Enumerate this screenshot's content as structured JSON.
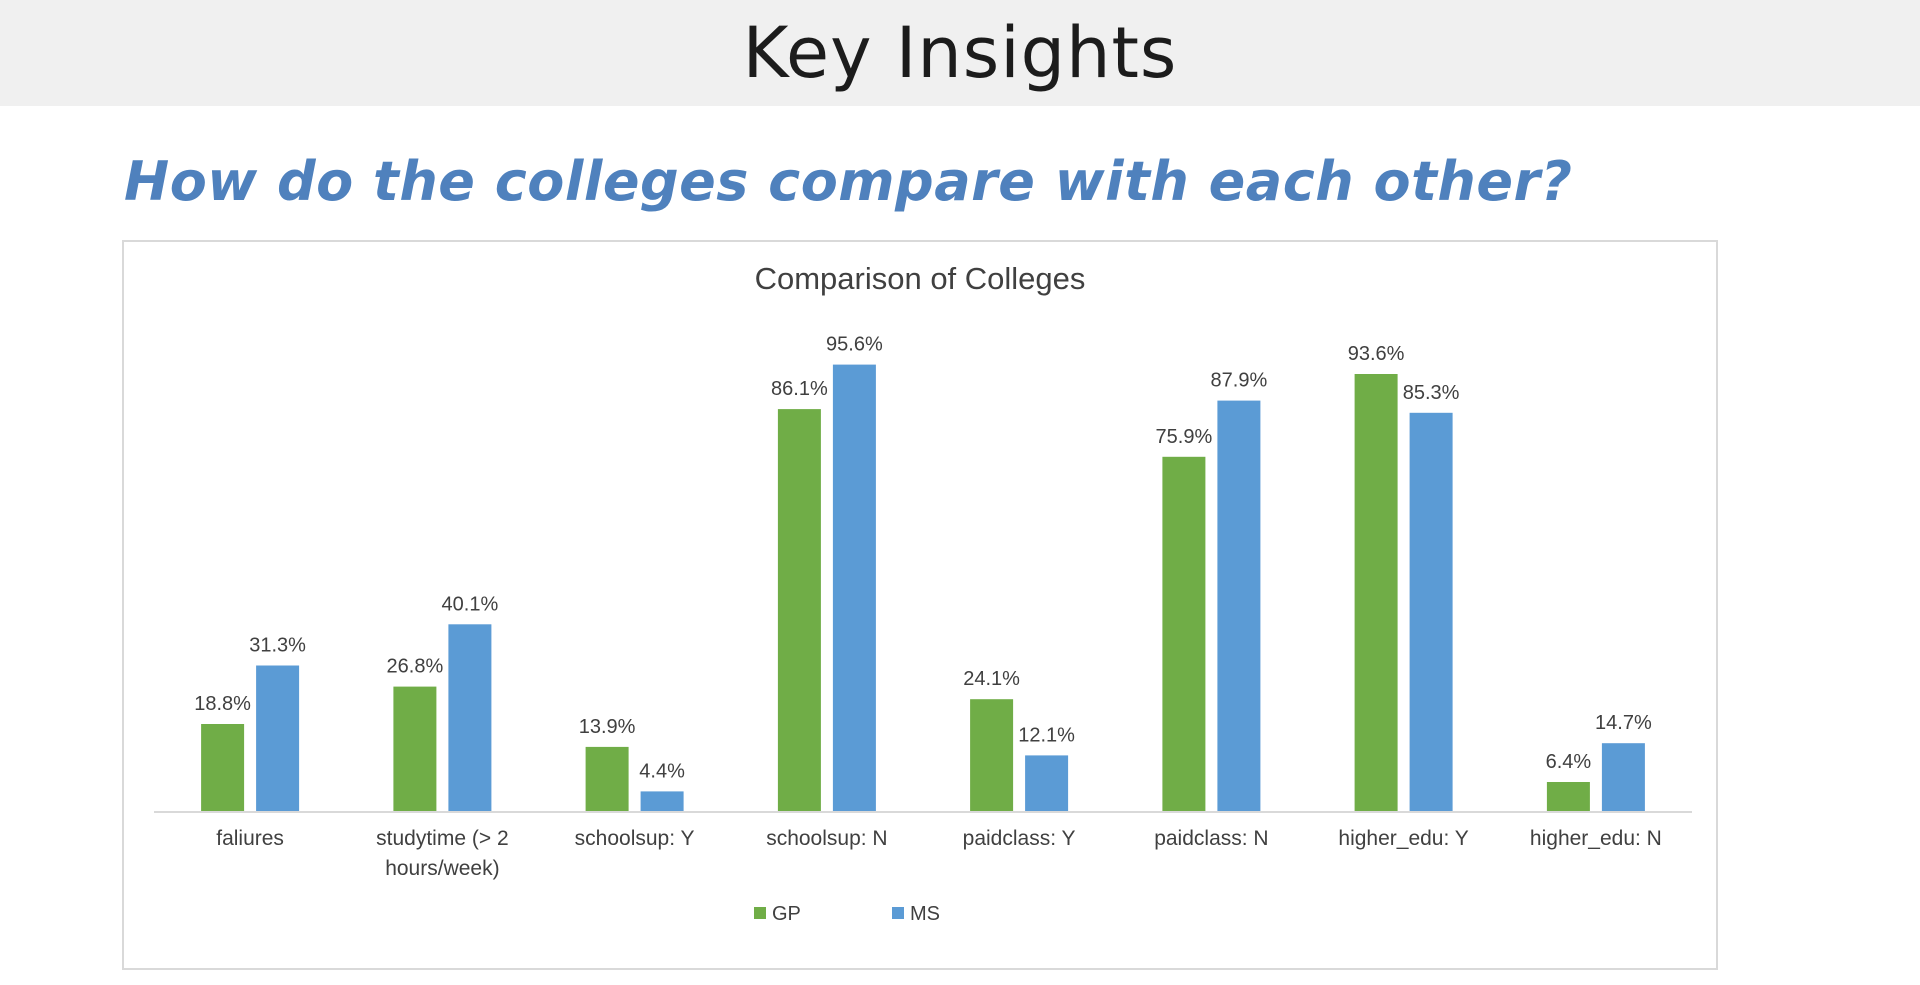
{
  "slide": {
    "title": "Key Insights",
    "subtitle": "How do the colleges compare with each other?"
  },
  "colors": {
    "GP": "#70ad47",
    "MS": "#5b9bd5",
    "subtitle": "#4f81bd",
    "title_bar": "#f0f0f0"
  },
  "chart_data": {
    "type": "bar",
    "title": "Comparison of Colleges",
    "xlabel": "",
    "ylabel": "",
    "ylim": [
      0,
      100
    ],
    "grid": false,
    "legend_position": "bottom",
    "categories": [
      [
        "faliures"
      ],
      [
        "studytime (> 2",
        "hours/week)"
      ],
      [
        "schoolsup: Y"
      ],
      [
        "schoolsup: N"
      ],
      [
        "paidclass: Y"
      ],
      [
        "paidclass: N"
      ],
      [
        "higher_edu: Y"
      ],
      [
        "higher_edu: N"
      ]
    ],
    "series": [
      {
        "name": "GP",
        "values": [
          18.8,
          26.8,
          13.9,
          86.1,
          24.1,
          75.9,
          93.6,
          6.4
        ],
        "labels": [
          "18.8%",
          "26.8%",
          "13.9%",
          "86.1%",
          "24.1%",
          "75.9%",
          "93.6%",
          "6.4%"
        ]
      },
      {
        "name": "MS",
        "values": [
          31.3,
          40.1,
          4.4,
          95.6,
          12.1,
          87.9,
          85.3,
          14.7
        ],
        "labels": [
          "31.3%",
          "40.1%",
          "4.4%",
          "95.6%",
          "12.1%",
          "87.9%",
          "85.3%",
          "14.7%"
        ]
      }
    ]
  }
}
